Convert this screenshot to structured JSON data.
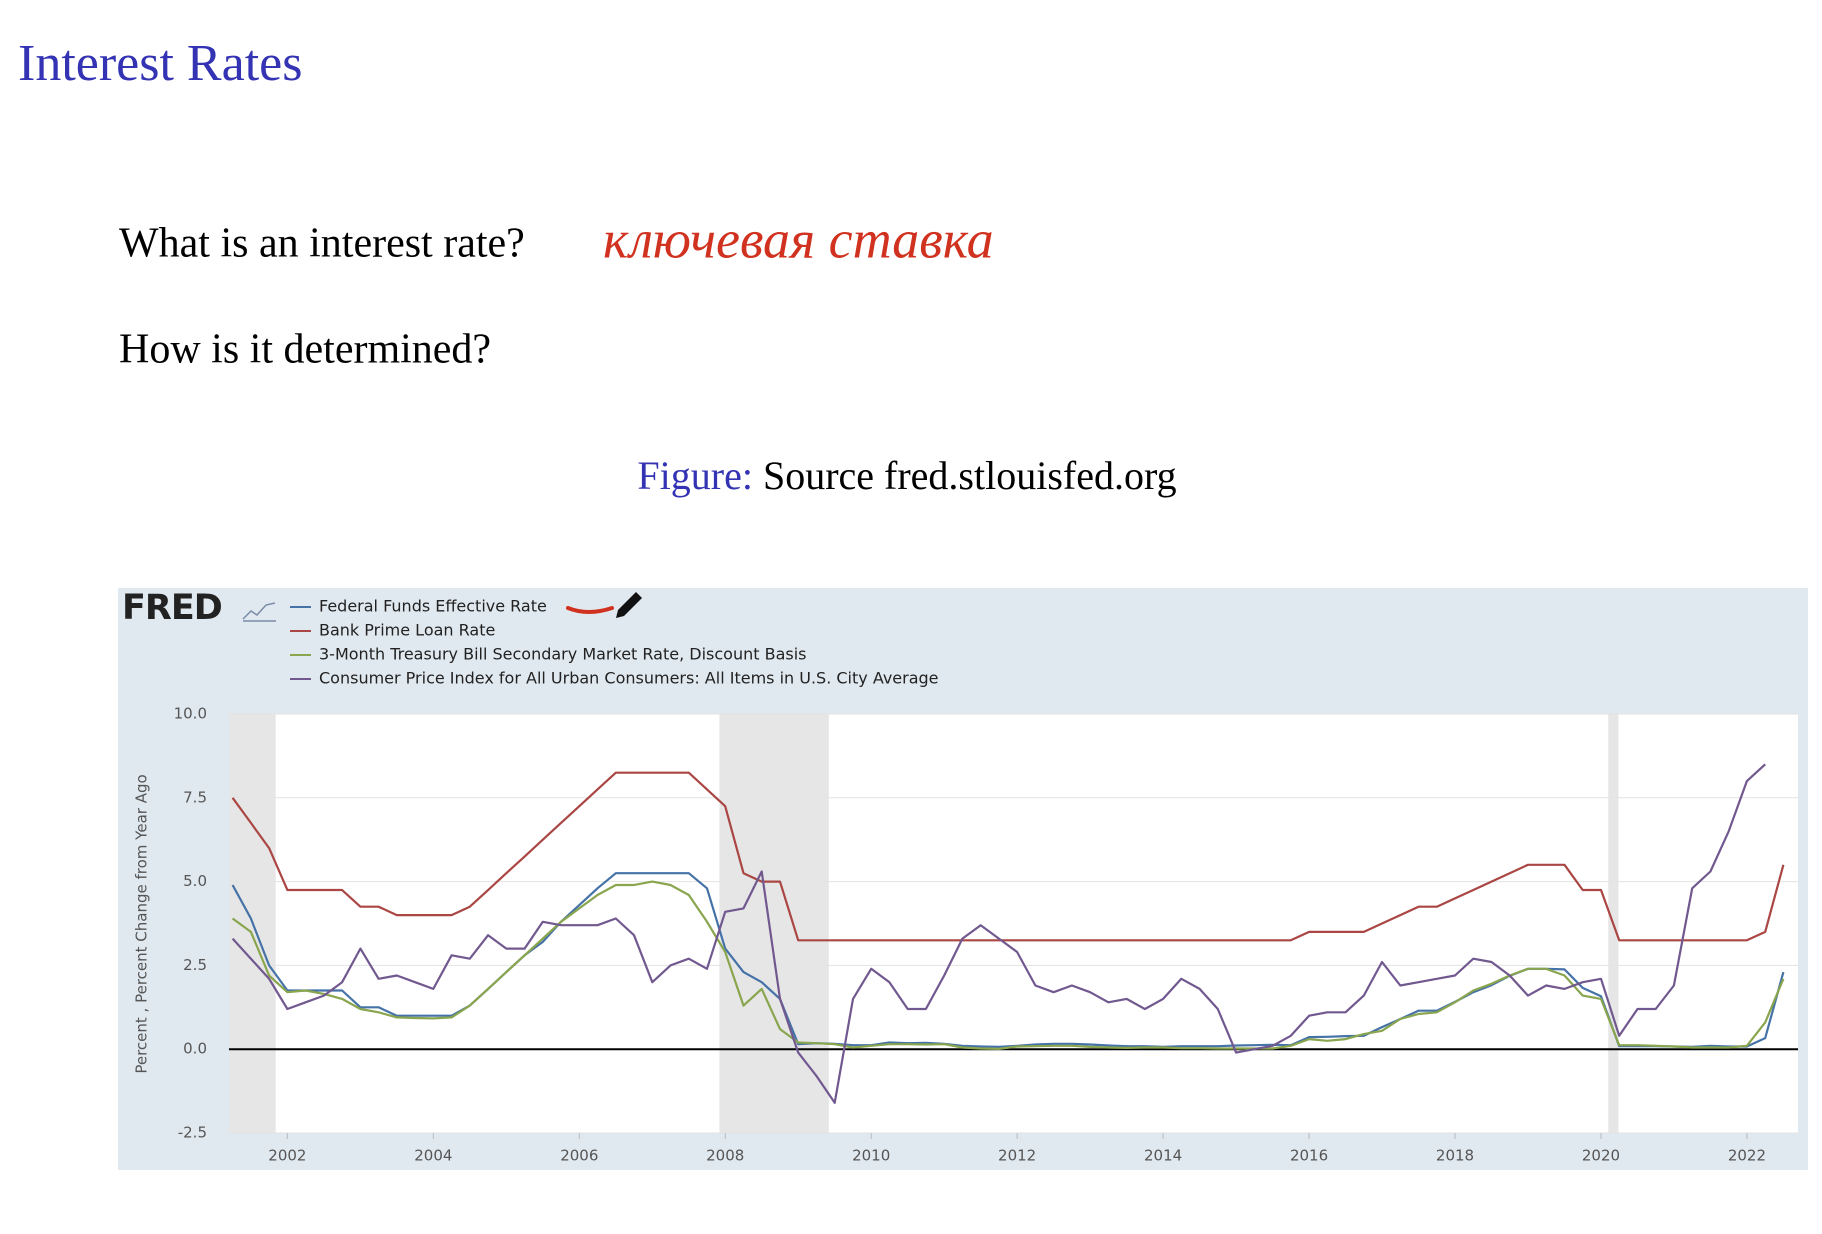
{
  "slide": {
    "title": "Interest Rates",
    "question1": "What is an interest rate?",
    "handwriting": "ключевая ставка",
    "question2": "How is it determined?",
    "caption_label": "Figure:",
    "caption_text": "Source fred.stlouisfed.org"
  },
  "chart_data": {
    "type": "line",
    "logo": "FRED",
    "ylabel": "Percent , Percent Change from Year Ago",
    "xlim": [
      2001.2,
      2022.7
    ],
    "xticks": [
      2002,
      2004,
      2006,
      2008,
      2010,
      2012,
      2014,
      2016,
      2018,
      2020,
      2022
    ],
    "ylim": [
      -2.5,
      10
    ],
    "yticks": [
      -2.5,
      {
        "value": 0,
        "label": "0.0"
      },
      2.5,
      {
        "value": 5,
        "label": "5.0"
      },
      7.5,
      {
        "value": 10,
        "label": "10.0"
      }
    ],
    "grid": true,
    "legend": "top-left",
    "recessions": [
      [
        2001.2,
        2001.84
      ],
      [
        2007.92,
        2009.42
      ],
      [
        2020.1,
        2020.24
      ]
    ],
    "x": [
      2001.25,
      2001.5,
      2001.75,
      2002,
      2002.25,
      2002.5,
      2002.75,
      2003,
      2003.25,
      2003.5,
      2003.75,
      2004,
      2004.25,
      2004.5,
      2004.75,
      2005,
      2005.25,
      2005.5,
      2005.75,
      2006,
      2006.25,
      2006.5,
      2006.75,
      2007,
      2007.25,
      2007.5,
      2007.75,
      2008,
      2008.25,
      2008.5,
      2008.75,
      2009,
      2009.25,
      2009.5,
      2009.75,
      2010,
      2010.25,
      2010.5,
      2010.75,
      2011,
      2011.25,
      2011.5,
      2011.75,
      2012,
      2012.25,
      2012.5,
      2012.75,
      2013,
      2013.25,
      2013.5,
      2013.75,
      2014,
      2014.25,
      2014.5,
      2014.75,
      2015,
      2015.25,
      2015.5,
      2015.75,
      2016,
      2016.25,
      2016.5,
      2016.75,
      2017,
      2017.25,
      2017.5,
      2017.75,
      2018,
      2018.25,
      2018.5,
      2018.75,
      2019,
      2019.25,
      2019.5,
      2019.75,
      2020,
      2020.25,
      2020.5,
      2020.75,
      2021,
      2021.25,
      2021.5,
      2021.75,
      2022,
      2022.25,
      2022.5
    ],
    "series": [
      {
        "name": "Federal Funds Effective Rate",
        "color": "#4572a7",
        "values": [
          4.9,
          3.9,
          2.5,
          1.75,
          1.75,
          1.75,
          1.75,
          1.25,
          1.25,
          1.0,
          1.0,
          1.0,
          1.0,
          1.3,
          1.8,
          2.3,
          2.8,
          3.2,
          3.8,
          4.3,
          4.8,
          5.25,
          5.25,
          5.25,
          5.25,
          5.25,
          4.8,
          3.0,
          2.3,
          2.0,
          1.5,
          0.15,
          0.18,
          0.16,
          0.12,
          0.12,
          0.2,
          0.18,
          0.19,
          0.16,
          0.1,
          0.08,
          0.07,
          0.1,
          0.14,
          0.16,
          0.16,
          0.14,
          0.11,
          0.09,
          0.09,
          0.07,
          0.09,
          0.09,
          0.09,
          0.11,
          0.12,
          0.13,
          0.12,
          0.36,
          0.37,
          0.39,
          0.4,
          0.66,
          0.9,
          1.15,
          1.15,
          1.41,
          1.7,
          1.91,
          2.19,
          2.4,
          2.4,
          2.38,
          1.83,
          1.58,
          0.09,
          0.09,
          0.09,
          0.08,
          0.07,
          0.1,
          0.08,
          0.08,
          0.33,
          2.3
        ]
      },
      {
        "name": "Bank Prime Loan Rate",
        "color": "#aa4643",
        "values": [
          7.5,
          6.75,
          6.0,
          4.75,
          4.75,
          4.75,
          4.75,
          4.25,
          4.25,
          4.0,
          4.0,
          4.0,
          4.0,
          4.25,
          4.75,
          5.25,
          5.75,
          6.25,
          6.75,
          7.25,
          7.75,
          8.25,
          8.25,
          8.25,
          8.25,
          8.25,
          7.75,
          7.25,
          5.25,
          5.0,
          5.0,
          3.25,
          3.25,
          3.25,
          3.25,
          3.25,
          3.25,
          3.25,
          3.25,
          3.25,
          3.25,
          3.25,
          3.25,
          3.25,
          3.25,
          3.25,
          3.25,
          3.25,
          3.25,
          3.25,
          3.25,
          3.25,
          3.25,
          3.25,
          3.25,
          3.25,
          3.25,
          3.25,
          3.25,
          3.5,
          3.5,
          3.5,
          3.5,
          3.75,
          4.0,
          4.25,
          4.25,
          4.5,
          4.75,
          5.0,
          5.25,
          5.5,
          5.5,
          5.5,
          4.75,
          4.75,
          3.25,
          3.25,
          3.25,
          3.25,
          3.25,
          3.25,
          3.25,
          3.25,
          3.5,
          5.5
        ]
      },
      {
        "name": "3-Month Treasury Bill Secondary Market Rate, Discount Basis",
        "color": "#89a54e",
        "values": [
          3.9,
          3.5,
          2.2,
          1.7,
          1.75,
          1.65,
          1.5,
          1.2,
          1.1,
          0.95,
          0.93,
          0.92,
          0.95,
          1.3,
          1.8,
          2.3,
          2.8,
          3.3,
          3.8,
          4.2,
          4.6,
          4.9,
          4.9,
          5.0,
          4.9,
          4.6,
          3.8,
          2.9,
          1.3,
          1.8,
          0.6,
          0.2,
          0.18,
          0.15,
          0.05,
          0.1,
          0.15,
          0.15,
          0.14,
          0.15,
          0.05,
          0.02,
          0.01,
          0.08,
          0.09,
          0.1,
          0.1,
          0.07,
          0.05,
          0.04,
          0.05,
          0.05,
          0.03,
          0.03,
          0.02,
          0.02,
          0.02,
          0.02,
          0.1,
          0.3,
          0.25,
          0.3,
          0.45,
          0.55,
          0.9,
          1.05,
          1.1,
          1.4,
          1.75,
          1.95,
          2.2,
          2.4,
          2.4,
          2.2,
          1.6,
          1.5,
          0.12,
          0.12,
          0.1,
          0.08,
          0.05,
          0.05,
          0.05,
          0.1,
          0.8,
          2.1
        ]
      },
      {
        "name": "Consumer Price Index for All Urban Consumers: All Items in U.S. City Average",
        "color": "#71588f",
        "values": [
          3.3,
          2.7,
          2.1,
          1.2,
          1.4,
          1.6,
          2.0,
          3.0,
          2.1,
          2.2,
          2.0,
          1.8,
          2.8,
          2.7,
          3.4,
          3.0,
          3.0,
          3.8,
          3.7,
          3.7,
          3.7,
          3.9,
          3.4,
          2.0,
          2.5,
          2.7,
          2.4,
          4.1,
          4.2,
          5.3,
          1.5,
          -0.1,
          -0.8,
          -1.6,
          1.5,
          2.4,
          2.0,
          1.2,
          1.2,
          2.2,
          3.3,
          3.7,
          3.3,
          2.9,
          1.9,
          1.7,
          1.9,
          1.7,
          1.4,
          1.5,
          1.2,
          1.5,
          2.1,
          1.8,
          1.2,
          -0.1,
          0.0,
          0.1,
          0.4,
          1.0,
          1.1,
          1.1,
          1.6,
          2.6,
          1.9,
          2.0,
          2.1,
          2.2,
          2.7,
          2.6,
          2.2,
          1.6,
          1.9,
          1.8,
          2.0,
          2.1,
          0.4,
          1.2,
          1.2,
          1.9,
          4.8,
          5.3,
          6.5,
          8.0,
          8.5,
          null
        ]
      }
    ]
  }
}
